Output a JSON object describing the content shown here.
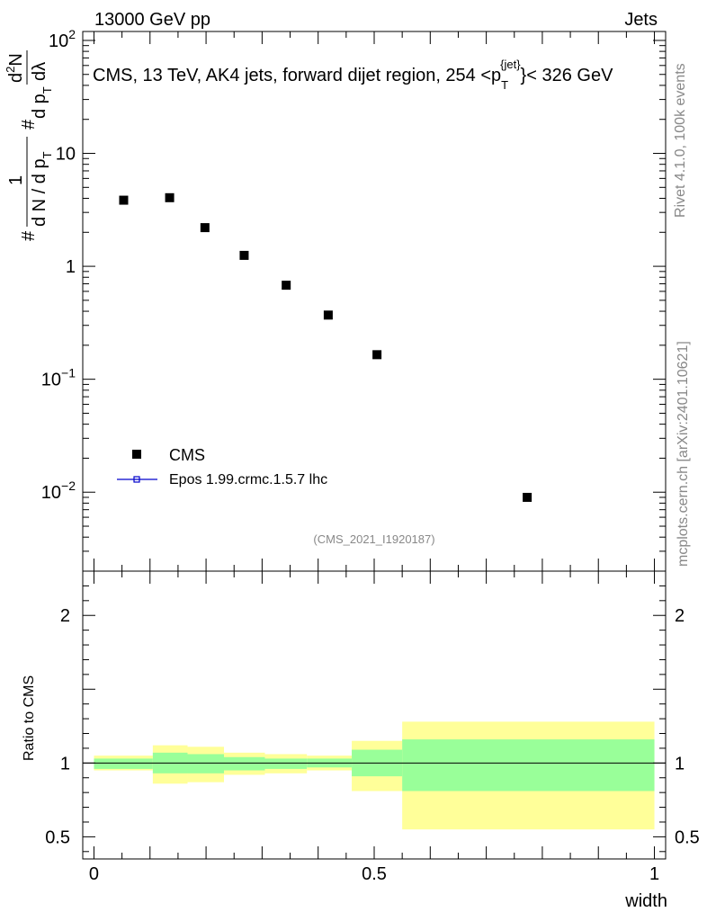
{
  "header": {
    "energy_label": "13000 GeV pp",
    "process_label": "Jets"
  },
  "right_side": {
    "rivet_label": "Rivet 4.1.0,  100k events",
    "mcplots_label": "mcplots.cern.ch [arXiv:2401.10621]"
  },
  "chart_data": [
    {
      "type": "scatter",
      "title": "CMS, 13 TeV, AK4 jets, forward dijet region, 254 <p_T^{jet}< 326 GeV",
      "title_parts": {
        "prefix": "CMS, 13 TeV, AK4 jets, forward dijet region, 254 <p",
        "sub": "T",
        "sup": "{jet}",
        "suffix": "}< 326 GeV"
      },
      "ylabel_parts": {
        "hash1": "#",
        "num": "1",
        "den": "d N / d p",
        "den_sub": "T",
        "hash2": "#",
        "inner_den": "d p",
        "inner_sub": "T",
        "d2n": "d",
        "d2n_sup": "2",
        "d2n_n": "N",
        "dlambda": "dλ"
      },
      "yscale": "log",
      "ylim": [
        0.002,
        120
      ],
      "xlim": [
        -0.02,
        1.02
      ],
      "ytick_labels": [
        {
          "value": 100,
          "base": "10",
          "exp": "2"
        },
        {
          "value": 10,
          "text": "10"
        },
        {
          "value": 1,
          "text": "1"
        },
        {
          "value": 0.1,
          "base": "10",
          "exp": "−1"
        },
        {
          "value": 0.01,
          "base": "10",
          "exp": "−2"
        }
      ],
      "series": [
        {
          "name": "CMS",
          "marker": "square",
          "color": "#000000",
          "x": [
            0.053,
            0.135,
            0.198,
            0.268,
            0.343,
            0.418,
            0.505,
            0.773
          ],
          "y": [
            3.85,
            4.05,
            2.2,
            1.25,
            0.68,
            0.37,
            0.165,
            0.009
          ]
        },
        {
          "name": "Epos 1.99.crmc.1.5.7 lhc",
          "marker": "open-square-line",
          "color": "#0000cc",
          "x": [],
          "y": []
        }
      ],
      "watermark": "(CMS_2021_I1920187)"
    },
    {
      "type": "area",
      "ylabel": "Ratio to CMS",
      "xlabel": "width",
      "ylim": [
        0.35,
        2.3
      ],
      "xlim": [
        -0.02,
        1.02
      ],
      "xtick_labels": [
        {
          "value": 0,
          "text": "0"
        },
        {
          "value": 0.5,
          "text": "0.5"
        },
        {
          "value": 1,
          "text": "1"
        }
      ],
      "ytick_labels": [
        {
          "value": 2,
          "text": "2"
        },
        {
          "value": 1,
          "text": "1"
        },
        {
          "value": 0.5,
          "text": "0.5"
        }
      ],
      "bands": [
        {
          "x0": 0.0,
          "x1": 0.105,
          "stat_lo": 0.96,
          "stat_hi": 1.03,
          "tot_lo": 0.95,
          "tot_hi": 1.05
        },
        {
          "x0": 0.105,
          "x1": 0.167,
          "stat_lo": 0.93,
          "stat_hi": 1.07,
          "tot_lo": 0.86,
          "tot_hi": 1.12
        },
        {
          "x0": 0.167,
          "x1": 0.232,
          "stat_lo": 0.93,
          "stat_hi": 1.06,
          "tot_lo": 0.87,
          "tot_hi": 1.11
        },
        {
          "x0": 0.232,
          "x1": 0.305,
          "stat_lo": 0.95,
          "stat_hi": 1.04,
          "tot_lo": 0.92,
          "tot_hi": 1.07
        },
        {
          "x0": 0.305,
          "x1": 0.38,
          "stat_lo": 0.96,
          "stat_hi": 1.03,
          "tot_lo": 0.93,
          "tot_hi": 1.06
        },
        {
          "x0": 0.38,
          "x1": 0.46,
          "stat_lo": 0.97,
          "stat_hi": 1.03,
          "tot_lo": 0.95,
          "tot_hi": 1.05
        },
        {
          "x0": 0.46,
          "x1": 0.55,
          "stat_lo": 0.91,
          "stat_hi": 1.09,
          "tot_lo": 0.81,
          "tot_hi": 1.15
        },
        {
          "x0": 0.55,
          "x1": 1.0,
          "stat_lo": 0.81,
          "stat_hi": 1.16,
          "tot_lo": 0.55,
          "tot_hi": 1.28
        }
      ],
      "colors": {
        "stat": "#99ff99",
        "total": "#ffff99"
      }
    }
  ]
}
